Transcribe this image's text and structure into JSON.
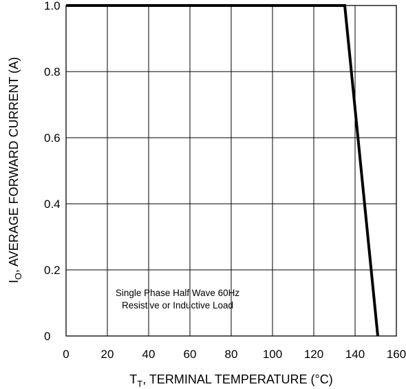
{
  "chart_data": {
    "type": "line",
    "title": "",
    "x": [
      0,
      135,
      151
    ],
    "series": [
      {
        "values": [
          1.0,
          1.0,
          0
        ]
      }
    ],
    "x_ticks": [
      "0",
      "20",
      "40",
      "60",
      "80",
      "100",
      "120",
      "140",
      "160"
    ],
    "y_ticks": [
      "0",
      "0.2",
      "0.4",
      "0.6",
      "0.8",
      "1.0"
    ],
    "xlim": [
      0,
      160
    ],
    "ylim": [
      0,
      1.0
    ],
    "grid": true,
    "xlabel": {
      "main": "T",
      "sub": "T",
      "rest": ", TERMINAL TEMPERATURE (°C)"
    },
    "ylabel": {
      "main": "I",
      "sub": "O",
      "rest": ", AVERAGE FORWARD CURRENT (A)"
    },
    "annotation": [
      "Single Phase Half Wave 60Hz",
      "Resistive or Inductive Load"
    ],
    "line_color": "#000000",
    "grid_color": "#000000"
  }
}
